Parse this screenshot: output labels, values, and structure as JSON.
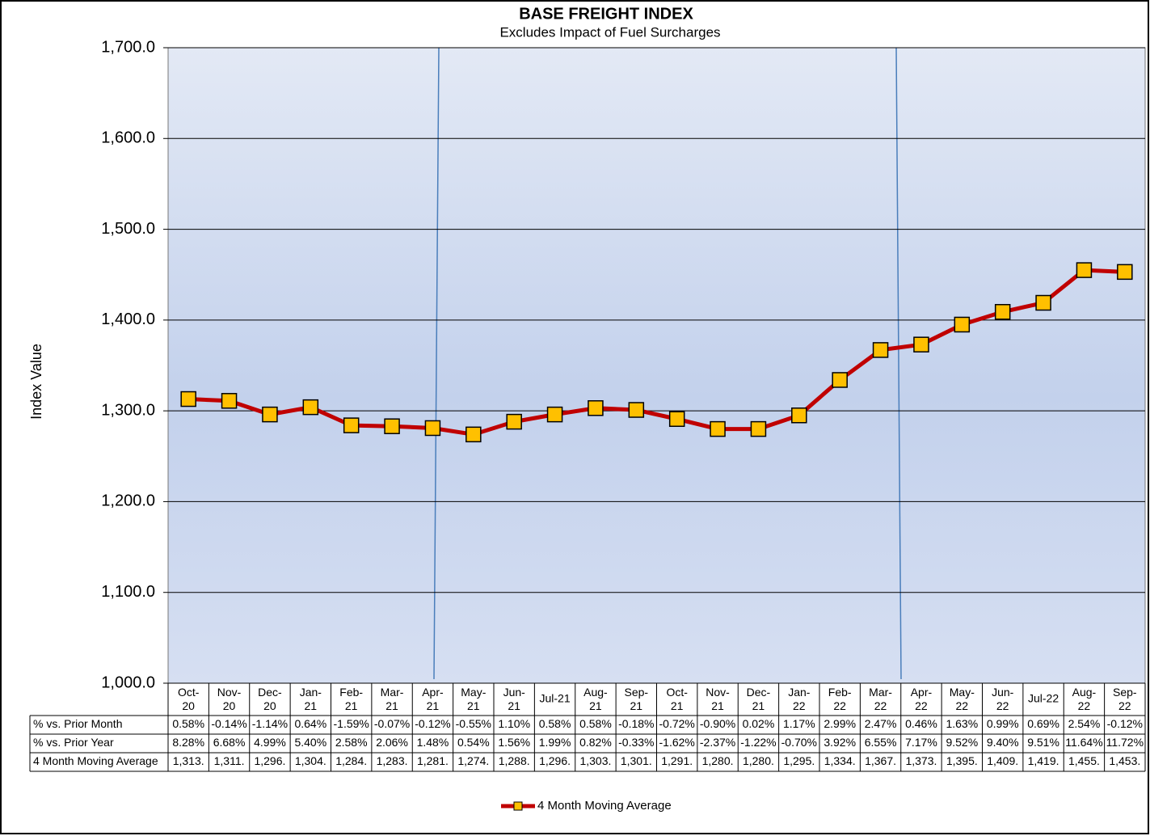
{
  "chart_data": {
    "type": "line",
    "title": "BASE FREIGHT INDEX",
    "subtitle": "Excludes Impact of Fuel Surcharges",
    "y_label": "Index Value",
    "categories": [
      "Oct-20",
      "Nov-20",
      "Dec-20",
      "Jan-21",
      "Feb-21",
      "Mar-21",
      "Apr-21",
      "May-21",
      "Jun-21",
      "Jul-21",
      "Aug-21",
      "Sep-21",
      "Oct-21",
      "Nov-21",
      "Dec-21",
      "Jan-22",
      "Feb-22",
      "Mar-22",
      "Apr-22",
      "May-22",
      "Jun-22",
      "Jul-22",
      "Aug-22",
      "Sep-22"
    ],
    "series": [
      {
        "name": "4 Month Moving Average",
        "color": "#c00000",
        "marker_color": "#ffc000",
        "values": [
          1313,
          1311,
          1296,
          1304,
          1284,
          1283,
          1281,
          1274,
          1288,
          1296,
          1303,
          1301,
          1291,
          1280,
          1280,
          1295,
          1334,
          1367,
          1373,
          1395,
          1409,
          1419,
          1455,
          1453
        ],
        "value_labels": [
          "1,313.",
          "1,311.",
          "1,296.",
          "1,304.",
          "1,284.",
          "1,283.",
          "1,281.",
          "1,274.",
          "1,288.",
          "1,296.",
          "1,303.",
          "1,301.",
          "1,291.",
          "1,280.",
          "1,280.",
          "1,295.",
          "1,334.",
          "1,367.",
          "1,373.",
          "1,395.",
          "1,409.",
          "1,419.",
          "1,455.",
          "1,453."
        ]
      }
    ],
    "table_rows": [
      {
        "name": "% vs. Prior Month",
        "values": [
          0.58,
          -0.14,
          -1.14,
          0.64,
          -1.59,
          -0.07,
          -0.12,
          -0.55,
          1.1,
          0.58,
          0.58,
          -0.18,
          -0.72,
          -0.9,
          0.02,
          1.17,
          2.99,
          2.47,
          0.46,
          1.63,
          0.99,
          0.69,
          2.54,
          -0.12
        ],
        "value_labels": [
          "0.58%",
          "-0.14%",
          "-1.14%",
          "0.64%",
          "-1.59%",
          "-0.07%",
          "-0.12%",
          "-0.55%",
          "1.10%",
          "0.58%",
          "0.58%",
          "-0.18%",
          "-0.72%",
          "-0.90%",
          "0.02%",
          "1.17%",
          "2.99%",
          "2.47%",
          "0.46%",
          "1.63%",
          "0.99%",
          "0.69%",
          "2.54%",
          "-0.12%"
        ]
      },
      {
        "name": "% vs. Prior Year",
        "values": [
          8.28,
          6.68,
          4.99,
          5.4,
          2.58,
          2.06,
          1.48,
          0.54,
          1.56,
          1.99,
          0.82,
          -0.33,
          -1.62,
          -2.37,
          -1.22,
          -0.7,
          3.92,
          6.55,
          7.17,
          9.52,
          9.4,
          9.51,
          11.64,
          11.72
        ],
        "value_labels": [
          "8.28%",
          "6.68%",
          "4.99%",
          "5.40%",
          "2.58%",
          "2.06%",
          "1.48%",
          "0.54%",
          "1.56%",
          "1.99%",
          "0.82%",
          "-0.33%",
          "-1.62%",
          "-2.37%",
          "-1.22%",
          "-0.70%",
          "3.92%",
          "6.55%",
          "7.17%",
          "9.52%",
          "9.40%",
          "9.51%",
          "11.64%",
          "11.72%"
        ]
      }
    ],
    "ylim": [
      1000,
      1700
    ],
    "yticks": [
      {
        "value": 1000,
        "label": "1,000.0"
      },
      {
        "value": 1100,
        "label": "1,100.0"
      },
      {
        "value": 1200,
        "label": "1,200.0"
      },
      {
        "value": 1300,
        "label": "1,300.0"
      },
      {
        "value": 1400,
        "label": "1,400.0"
      },
      {
        "value": 1500,
        "label": "1,500.0"
      },
      {
        "value": 1600,
        "label": "1,600.0"
      },
      {
        "value": 1700,
        "label": "1,700.0"
      }
    ],
    "grid": true
  }
}
